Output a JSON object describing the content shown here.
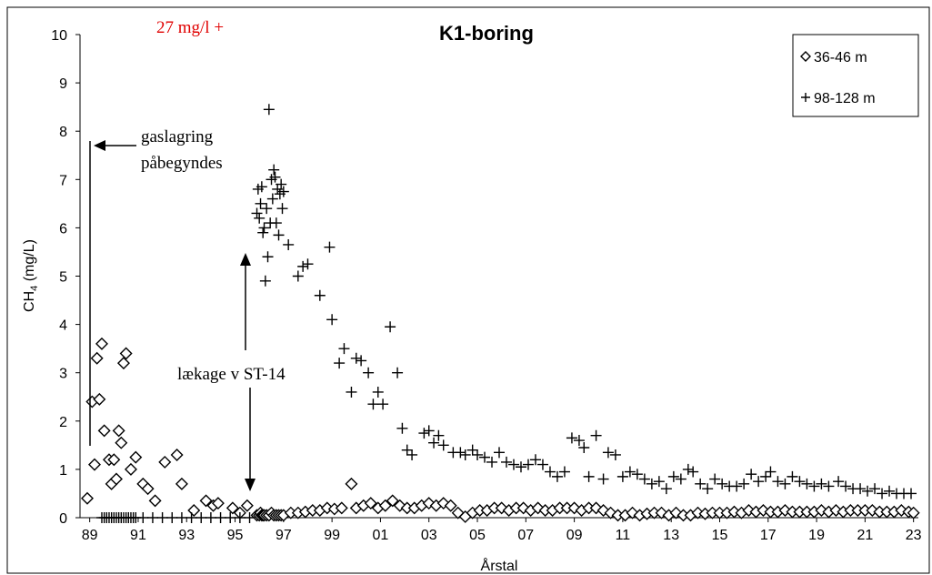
{
  "chart_data": {
    "type": "scatter",
    "title": "K1-boring",
    "xlabel": "Årstal",
    "ylabel": [
      "CH",
      "4",
      " (mg/L)"
    ],
    "annotations": [
      {
        "text": "27 mg/l +",
        "color": "#e00000"
      },
      {
        "text": "gaslagring"
      },
      {
        "text": "påbegyndes"
      },
      {
        "text": "lækage v ST-14"
      }
    ],
    "xlim": [
      1988.6,
      2023.2
    ],
    "ylim": [
      0,
      10
    ],
    "xticks": [
      {
        "value": 1989,
        "label": "89"
      },
      {
        "value": 1991,
        "label": "91"
      },
      {
        "value": 1993,
        "label": "93"
      },
      {
        "value": 1995,
        "label": "95"
      },
      {
        "value": 1997,
        "label": "97"
      },
      {
        "value": 1999,
        "label": "99"
      },
      {
        "value": 2001,
        "label": "01"
      },
      {
        "value": 2003,
        "label": "03"
      },
      {
        "value": 2005,
        "label": "05"
      },
      {
        "value": 2007,
        "label": "07"
      },
      {
        "value": 2009,
        "label": "09"
      },
      {
        "value": 2011,
        "label": "11"
      },
      {
        "value": 2013,
        "label": "13"
      },
      {
        "value": 2015,
        "label": "15"
      },
      {
        "value": 2017,
        "label": "17"
      },
      {
        "value": 2019,
        "label": "19"
      },
      {
        "value": 2021,
        "label": "21"
      },
      {
        "value": 2023,
        "label": "23"
      }
    ],
    "yticks": [
      0,
      1,
      2,
      3,
      4,
      5,
      6,
      7,
      8,
      9,
      10
    ],
    "legend": "upper right",
    "series": [
      {
        "name": "36-46 m",
        "marker": "diamond",
        "color": "#000000",
        "x": [
          1988.9,
          1989.1,
          1989.2,
          1989.3,
          1989.4,
          1989.5,
          1989.6,
          1989.8,
          1989.9,
          1990.0,
          1990.1,
          1990.2,
          1990.3,
          1990.4,
          1990.5,
          1990.7,
          1990.9,
          1991.2,
          1991.4,
          1991.7,
          1992.1,
          1992.6,
          1992.8,
          1993.3,
          1993.8,
          1994.1,
          1994.3,
          1994.9,
          1995.2,
          1995.5,
          1995.9,
          1996.0,
          1996.05,
          1996.1,
          1996.15,
          1996.2,
          1996.3,
          1996.4,
          1996.5,
          1996.6,
          1996.7,
          1996.8,
          1996.9,
          1997.0,
          1997.3,
          1997.6,
          1997.9,
          1998.2,
          1998.5,
          1998.8,
          1999.1,
          1999.4,
          1999.8,
          2000.0,
          2000.3,
          2000.6,
          2000.9,
          2001.2,
          2001.5,
          2001.8,
          2002.1,
          2002.4,
          2002.7,
          2003.0,
          2003.3,
          2003.6,
          2003.9,
          2004.2,
          2004.5,
          2004.8,
          2005.1,
          2005.4,
          2005.7,
          2006.0,
          2006.3,
          2006.6,
          2006.9,
          2007.2,
          2007.5,
          2007.8,
          2008.1,
          2008.4,
          2008.7,
          2009.0,
          2009.3,
          2009.6,
          2009.9,
          2010.2,
          2010.5,
          2010.8,
          2011.1,
          2011.4,
          2011.7,
          2012.0,
          2012.3,
          2012.6,
          2012.9,
          2013.2,
          2013.5,
          2013.8,
          2014.1,
          2014.4,
          2014.7,
          2015.0,
          2015.3,
          2015.6,
          2015.9,
          2016.2,
          2016.5,
          2016.8,
          2017.1,
          2017.4,
          2017.7,
          2018.0,
          2018.3,
          2018.6,
          2018.9,
          2019.2,
          2019.5,
          2019.8,
          2020.1,
          2020.4,
          2020.7,
          2021.0,
          2021.3,
          2021.6,
          2021.9,
          2022.2,
          2022.5,
          2022.8,
          2023.0
        ],
        "values": [
          0.4,
          2.4,
          1.1,
          3.3,
          2.45,
          3.6,
          1.8,
          1.2,
          0.7,
          1.2,
          0.8,
          1.8,
          1.55,
          3.2,
          3.4,
          1.0,
          1.25,
          0.7,
          0.6,
          0.35,
          1.15,
          1.3,
          0.7,
          0.15,
          0.35,
          0.25,
          0.3,
          0.2,
          0.1,
          0.25,
          0.05,
          0.05,
          0.1,
          0.05,
          0.05,
          0.05,
          0.05,
          0.05,
          0.1,
          0.05,
          0.05,
          0.05,
          0.05,
          0.05,
          0.1,
          0.1,
          0.12,
          0.15,
          0.15,
          0.2,
          0.18,
          0.2,
          0.7,
          0.2,
          0.25,
          0.3,
          0.2,
          0.25,
          0.35,
          0.25,
          0.2,
          0.2,
          0.25,
          0.3,
          0.25,
          0.3,
          0.25,
          0.1,
          0.02,
          0.1,
          0.15,
          0.15,
          0.2,
          0.2,
          0.15,
          0.2,
          0.2,
          0.15,
          0.2,
          0.15,
          0.15,
          0.2,
          0.2,
          0.2,
          0.15,
          0.2,
          0.2,
          0.15,
          0.1,
          0.05,
          0.05,
          0.1,
          0.05,
          0.08,
          0.1,
          0.1,
          0.05,
          0.1,
          0.05,
          0.05,
          0.1,
          0.08,
          0.1,
          0.1,
          0.1,
          0.12,
          0.1,
          0.15,
          0.12,
          0.15,
          0.12,
          0.12,
          0.15,
          0.12,
          0.12,
          0.12,
          0.12,
          0.15,
          0.12,
          0.15,
          0.12,
          0.15,
          0.15,
          0.15,
          0.15,
          0.12,
          0.12,
          0.12,
          0.15,
          0.12,
          0.1
        ]
      },
      {
        "name": "98-128 m",
        "marker": "plus",
        "color": "#000000",
        "x": [
          1989.5,
          1989.6,
          1989.7,
          1989.8,
          1989.9,
          1990.0,
          1990.1,
          1990.2,
          1990.3,
          1990.4,
          1990.5,
          1990.6,
          1990.7,
          1990.8,
          1990.9,
          1991.2,
          1991.6,
          1992.0,
          1992.4,
          1992.8,
          1993.2,
          1993.6,
          1994.0,
          1994.4,
          1994.8,
          1995.2,
          1995.6,
          1995.9,
          1995.95,
          1996.0,
          1996.05,
          1996.1,
          1996.15,
          1996.2,
          1996.25,
          1996.3,
          1996.35,
          1996.4,
          1996.45,
          1996.5,
          1996.55,
          1996.6,
          1996.65,
          1996.7,
          1996.75,
          1996.8,
          1996.85,
          1996.9,
          1996.95,
          1997.0,
          1997.2,
          1997.6,
          1997.8,
          1998.0,
          1998.5,
          1998.9,
          1999.0,
          1999.3,
          1999.5,
          1999.8,
          2000.0,
          2000.2,
          2000.5,
          2000.7,
          2000.9,
          2001.1,
          2001.4,
          2001.7,
          2001.9,
          2002.1,
          2002.3,
          2002.8,
          2003.0,
          2003.2,
          2003.4,
          2003.6,
          2004.0,
          2004.3,
          2004.5,
          2004.8,
          2005.0,
          2005.3,
          2005.6,
          2005.9,
          2006.2,
          2006.5,
          2006.8,
          2007.1,
          2007.4,
          2007.7,
          2008.0,
          2008.3,
          2008.6,
          2008.9,
          2009.2,
          2009.4,
          2009.6,
          2009.9,
          2010.2,
          2010.4,
          2010.7,
          2011.0,
          2011.3,
          2011.6,
          2011.9,
          2012.2,
          2012.5,
          2012.8,
          2013.1,
          2013.4,
          2013.7,
          2013.9,
          2014.2,
          2014.5,
          2014.8,
          2015.1,
          2015.4,
          2015.7,
          2016.0,
          2016.3,
          2016.6,
          2016.9,
          2017.1,
          2017.4,
          2017.7,
          2018.0,
          2018.3,
          2018.6,
          2018.9,
          2019.2,
          2019.5,
          2019.9,
          2020.2,
          2020.5,
          2020.8,
          2021.1,
          2021.4,
          2021.7,
          2022.0,
          2022.3,
          2022.6,
          2022.9
        ],
        "values": [
          0,
          0,
          0,
          0,
          0,
          0,
          0,
          0,
          0,
          0,
          0,
          0,
          0,
          0,
          0,
          0,
          0,
          0,
          0,
          0,
          0,
          0,
          0,
          0,
          0,
          0,
          0,
          6.3,
          6.8,
          6.2,
          6.5,
          6.85,
          5.9,
          6.0,
          4.9,
          6.4,
          5.4,
          8.45,
          6.1,
          7.0,
          6.6,
          7.2,
          7.05,
          6.1,
          6.8,
          5.85,
          6.7,
          6.9,
          6.4,
          6.75,
          5.65,
          5.0,
          5.2,
          5.25,
          4.6,
          5.6,
          4.1,
          3.2,
          3.5,
          2.6,
          3.3,
          3.25,
          3.0,
          2.35,
          2.6,
          2.35,
          3.95,
          3.0,
          1.85,
          1.4,
          1.3,
          1.75,
          1.8,
          1.55,
          1.7,
          1.5,
          1.35,
          1.35,
          1.3,
          1.4,
          1.3,
          1.25,
          1.15,
          1.35,
          1.15,
          1.1,
          1.05,
          1.1,
          1.2,
          1.1,
          0.95,
          0.85,
          0.95,
          1.65,
          1.6,
          1.45,
          0.85,
          1.7,
          0.8,
          1.35,
          1.3,
          0.85,
          0.95,
          0.9,
          0.8,
          0.7,
          0.75,
          0.6,
          0.85,
          0.8,
          1.0,
          0.95,
          0.7,
          0.6,
          0.8,
          0.7,
          0.65,
          0.65,
          0.7,
          0.9,
          0.75,
          0.85,
          0.95,
          0.75,
          0.7,
          0.85,
          0.75,
          0.7,
          0.65,
          0.7,
          0.65,
          0.75,
          0.65,
          0.6,
          0.6,
          0.55,
          0.6,
          0.5,
          0.55,
          0.5,
          0.5,
          0.5
        ]
      }
    ]
  }
}
